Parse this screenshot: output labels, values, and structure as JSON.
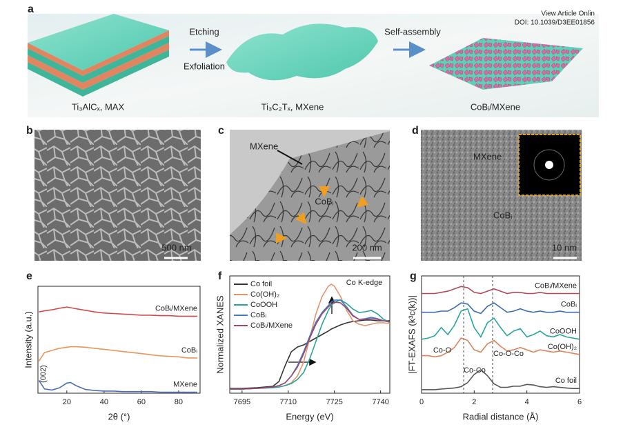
{
  "header": {
    "link": "View Article Onlin",
    "doi": "DOI: 10.1039/D3EE01856"
  },
  "panel_a": {
    "label": "a",
    "steps": [
      "Etching",
      "Exfoliation",
      "Self-assembly"
    ],
    "materials": [
      "Ti₃AlCₓ, MAX",
      "Ti₃C₂Tₓ, MXene",
      "CoBᵢ/MXene"
    ]
  },
  "panel_b": {
    "label": "b",
    "scale_bar": "500 nm"
  },
  "panel_c": {
    "label": "c",
    "annotations": [
      "MXene",
      "CoBᵢ"
    ],
    "scale_bar": "200 nm"
  },
  "panel_d": {
    "label": "d",
    "annotations": [
      "MXene",
      "CoBᵢ"
    ],
    "scale_bar": "10 nm"
  },
  "chart_data": [
    {
      "label": "e",
      "type": "line",
      "x_label": "2θ (°)",
      "y_label": "Intensity (a.u.)",
      "legend": "inline",
      "annotations": [
        "(002)"
      ],
      "x": [
        5,
        8,
        12,
        16,
        20,
        22,
        25,
        30,
        35,
        40,
        45,
        50,
        55,
        60,
        65,
        70,
        75,
        80,
        85,
        90
      ],
      "xlim": [
        4.5,
        91.5
      ],
      "xticks": [
        20,
        40,
        60,
        80
      ],
      "ylim": [
        0,
        10
      ],
      "series": [
        {
          "name": "CoBᵢ/MXene",
          "color": "#d24b4b",
          "values": [
            7.6,
            7.7,
            7.8,
            7.95,
            8.05,
            8.0,
            7.9,
            7.75,
            7.6,
            7.5,
            7.45,
            7.4,
            7.35,
            7.3,
            7.3,
            7.25,
            7.25,
            7.2,
            7.2,
            7.2
          ]
        },
        {
          "name": "CoBᵢ",
          "color": "#e8955a",
          "values": [
            3.0,
            3.8,
            4.0,
            4.2,
            4.3,
            4.35,
            4.35,
            4.3,
            4.2,
            4.1,
            4.0,
            3.9,
            3.8,
            3.7,
            3.6,
            3.5,
            3.45,
            3.4,
            3.3,
            3.3
          ]
        },
        {
          "name": "MXene",
          "color": "#4b6fb5",
          "values": [
            1.2,
            0.4,
            0.3,
            0.5,
            0.95,
            1.0,
            0.7,
            0.35,
            0.25,
            0.2,
            0.2,
            0.15,
            0.15,
            0.15,
            0.15,
            0.1,
            0.1,
            0.1,
            0.1,
            0.1
          ]
        }
      ]
    },
    {
      "label": "f",
      "type": "line",
      "x_label": "Energy (eV)",
      "y_label": "Normalized XANES",
      "legend": "upper left",
      "annotations": [
        "Co K-edge"
      ],
      "x": [
        7691,
        7695,
        7700,
        7705,
        7707,
        7709,
        7711,
        7713,
        7715,
        7717,
        7719,
        7721,
        7723,
        7724,
        7725,
        7727,
        7729,
        7731,
        7733,
        7735,
        7737,
        7739,
        7741,
        7743
      ],
      "xlim": [
        7691,
        7743
      ],
      "xticks": [
        7695,
        7710,
        7725,
        7740
      ],
      "ylim": [
        -0.05,
        1.65
      ],
      "series": [
        {
          "name": "Co foil",
          "color": "#333333",
          "values": [
            0.02,
            0.02,
            0.03,
            0.05,
            0.12,
            0.35,
            0.55,
            0.62,
            0.65,
            0.7,
            0.75,
            0.8,
            0.85,
            0.88,
            0.9,
            0.94,
            0.97,
            0.99,
            1.0,
            1.01,
            1.01,
            1.0,
            1.0,
            1.0
          ]
        },
        {
          "name": "Co(OH)₂",
          "color": "#e0956b",
          "values": [
            0.01,
            0.01,
            0.02,
            0.03,
            0.04,
            0.06,
            0.1,
            0.2,
            0.4,
            0.75,
            1.1,
            1.35,
            1.5,
            1.53,
            1.5,
            1.35,
            1.15,
            1.0,
            0.95,
            0.93,
            0.95,
            0.97,
            0.97,
            0.96
          ]
        },
        {
          "name": "CoOOH",
          "color": "#2aa198",
          "values": [
            0.01,
            0.01,
            0.02,
            0.03,
            0.04,
            0.06,
            0.09,
            0.15,
            0.25,
            0.45,
            0.7,
            0.95,
            1.15,
            1.22,
            1.27,
            1.3,
            1.25,
            1.17,
            1.12,
            1.13,
            1.15,
            1.1,
            1.02,
            0.98
          ]
        },
        {
          "name": "CoBᵢ",
          "color": "#3b7dc4",
          "values": [
            0.01,
            0.01,
            0.02,
            0.04,
            0.06,
            0.1,
            0.2,
            0.35,
            0.55,
            0.78,
            0.98,
            1.12,
            1.22,
            1.27,
            1.3,
            1.3,
            1.2,
            1.08,
            1.02,
            1.03,
            1.05,
            1.03,
            1.0,
            0.98
          ]
        },
        {
          "name": "CoBᵢ/MXene",
          "color": "#a0466a",
          "values": [
            0.01,
            0.01,
            0.02,
            0.04,
            0.06,
            0.1,
            0.2,
            0.33,
            0.52,
            0.75,
            0.95,
            1.1,
            1.2,
            1.24,
            1.27,
            1.26,
            1.18,
            1.07,
            1.02,
            1.02,
            1.03,
            1.02,
            1.0,
            0.98
          ]
        }
      ]
    },
    {
      "label": "g",
      "type": "line",
      "x_label": "Radial distance (Å)",
      "y_label": "|FT-EXAFS (k³c(k))|",
      "legend": "inline",
      "annotations": [
        "Co-O",
        "Co-O-Co",
        "Co-Co"
      ],
      "vlines": [
        1.6,
        2.7
      ],
      "x": [
        0,
        0.25,
        0.5,
        0.75,
        1,
        1.25,
        1.5,
        1.75,
        2,
        2.25,
        2.5,
        2.75,
        3,
        3.25,
        3.5,
        3.75,
        4,
        4.25,
        4.5,
        4.75,
        5,
        5.25,
        5.5,
        5.75,
        6
      ],
      "xlim": [
        0,
        6
      ],
      "xticks": [
        0,
        2,
        4,
        6
      ],
      "ylim": [
        0,
        10
      ],
      "series": [
        {
          "name": "CoBᵢ/MXene",
          "color": "#b24a55",
          "values": [
            8.5,
            8.5,
            8.5,
            8.6,
            8.7,
            8.9,
            9.1,
            9.0,
            8.6,
            8.5,
            8.7,
            8.9,
            8.7,
            8.5,
            8.6,
            8.6,
            8.5,
            8.5,
            8.6,
            8.5,
            8.5,
            8.5,
            8.5,
            8.5,
            8.5
          ]
        },
        {
          "name": "CoBᵢ",
          "color": "#3c6db0",
          "values": [
            6.9,
            6.9,
            6.9,
            7.0,
            7.0,
            7.3,
            7.7,
            7.6,
            7.0,
            6.8,
            7.4,
            7.7,
            7.3,
            6.9,
            7.0,
            7.2,
            7.0,
            6.9,
            7.0,
            6.9,
            6.9,
            7.0,
            6.9,
            6.9,
            6.9
          ]
        },
        {
          "name": "CoOOH",
          "color": "#27a59c",
          "values": [
            4.6,
            4.7,
            4.9,
            5.6,
            5.0,
            5.8,
            7.0,
            7.2,
            5.6,
            4.8,
            6.0,
            6.4,
            5.6,
            4.9,
            5.3,
            5.5,
            4.8,
            5.0,
            5.3,
            4.9,
            4.8,
            5.0,
            4.8,
            4.7,
            4.6
          ]
        },
        {
          "name": "Co(OH)₂",
          "color": "#d9845a",
          "values": [
            3.2,
            3.2,
            3.1,
            3.2,
            3.5,
            3.9,
            4.7,
            4.5,
            3.7,
            3.5,
            4.2,
            4.5,
            4.0,
            3.6,
            3.7,
            3.9,
            3.7,
            3.5,
            3.7,
            3.6,
            3.5,
            3.6,
            3.5,
            3.4,
            3.3
          ]
        },
        {
          "name": "Co foil",
          "color": "#555555",
          "values": [
            0.3,
            0.3,
            0.3,
            0.35,
            0.4,
            0.45,
            0.55,
            0.9,
            1.6,
            2.0,
            1.5,
            0.8,
            0.5,
            0.5,
            0.6,
            0.6,
            0.75,
            0.7,
            0.55,
            0.5,
            0.55,
            0.5,
            0.45,
            0.4,
            0.4
          ]
        }
      ]
    }
  ]
}
